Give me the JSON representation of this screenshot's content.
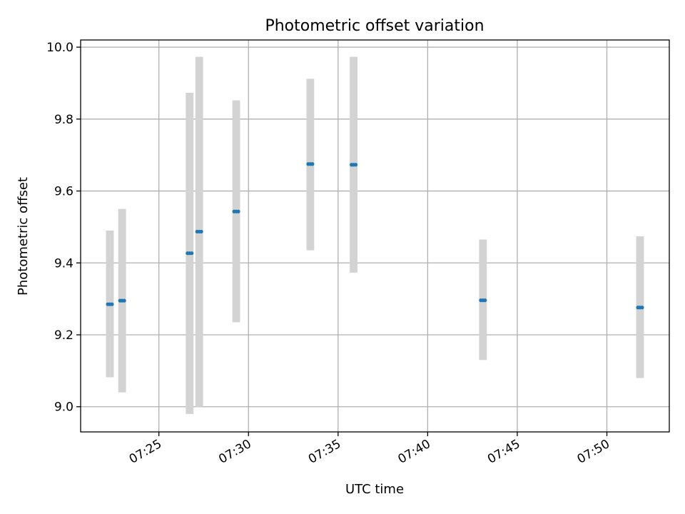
{
  "chart_data": {
    "type": "scatter",
    "title": "Photometric offset variation",
    "xlabel": "UTC time",
    "ylabel": "Photometric offset",
    "grid": true,
    "legend": "none",
    "xlim": [
      "07:20:38",
      "07:53:29"
    ],
    "ylim": [
      8.93,
      10.02
    ],
    "xticks": [
      "07:25",
      "07:30",
      "07:35",
      "07:40",
      "07:45",
      "07:50"
    ],
    "yticks": [
      "9.0",
      "9.2",
      "9.4",
      "9.6",
      "9.8",
      "10.0"
    ],
    "colors": {
      "point": "#1f77b4",
      "error_bar": "#d3d3d3",
      "grid": "#b0b0b0"
    },
    "series": [
      {
        "points": [
          {
            "time": "07:22:09",
            "y": 9.285,
            "y_low": 9.082,
            "y_high": 9.49
          },
          {
            "time": "07:22:16",
            "y": 9.285,
            "y_low": 9.082,
            "y_high": 9.49
          },
          {
            "time": "07:22:23",
            "y": 9.285,
            "y_low": 9.082,
            "y_high": 9.49
          },
          {
            "time": "07:22:50",
            "y": 9.295,
            "y_low": 9.04,
            "y_high": 9.55
          },
          {
            "time": "07:22:57",
            "y": 9.295,
            "y_low": 9.04,
            "y_high": 9.55
          },
          {
            "time": "07:23:04",
            "y": 9.295,
            "y_low": 9.04,
            "y_high": 9.55
          },
          {
            "time": "07:26:36",
            "y": 9.427,
            "y_low": 8.98,
            "y_high": 9.873
          },
          {
            "time": "07:26:43",
            "y": 9.427,
            "y_low": 8.98,
            "y_high": 9.873
          },
          {
            "time": "07:26:50",
            "y": 9.427,
            "y_low": 8.98,
            "y_high": 9.873
          },
          {
            "time": "07:27:08",
            "y": 9.487,
            "y_low": 9.0,
            "y_high": 9.973
          },
          {
            "time": "07:27:15",
            "y": 9.487,
            "y_low": 9.0,
            "y_high": 9.973
          },
          {
            "time": "07:27:22",
            "y": 9.487,
            "y_low": 9.0,
            "y_high": 9.973
          },
          {
            "time": "07:29:12",
            "y": 9.543,
            "y_low": 9.235,
            "y_high": 9.852
          },
          {
            "time": "07:29:19",
            "y": 9.543,
            "y_low": 9.235,
            "y_high": 9.852
          },
          {
            "time": "07:29:26",
            "y": 9.543,
            "y_low": 9.235,
            "y_high": 9.852
          },
          {
            "time": "07:33:20",
            "y": 9.675,
            "y_low": 9.435,
            "y_high": 9.912
          },
          {
            "time": "07:33:27",
            "y": 9.675,
            "y_low": 9.435,
            "y_high": 9.912
          },
          {
            "time": "07:33:34",
            "y": 9.675,
            "y_low": 9.435,
            "y_high": 9.912
          },
          {
            "time": "07:35:45",
            "y": 9.673,
            "y_low": 9.373,
            "y_high": 9.973
          },
          {
            "time": "07:35:52",
            "y": 9.673,
            "y_low": 9.373,
            "y_high": 9.973
          },
          {
            "time": "07:35:59",
            "y": 9.673,
            "y_low": 9.373,
            "y_high": 9.973
          },
          {
            "time": "07:42:58",
            "y": 9.296,
            "y_low": 9.13,
            "y_high": 9.465
          },
          {
            "time": "07:43:05",
            "y": 9.296,
            "y_low": 9.13,
            "y_high": 9.465
          },
          {
            "time": "07:43:12",
            "y": 9.296,
            "y_low": 9.13,
            "y_high": 9.465
          },
          {
            "time": "07:51:44",
            "y": 9.276,
            "y_low": 9.08,
            "y_high": 9.474
          },
          {
            "time": "07:51:51",
            "y": 9.276,
            "y_low": 9.08,
            "y_high": 9.474
          },
          {
            "time": "07:51:58",
            "y": 9.276,
            "y_low": 9.08,
            "y_high": 9.474
          }
        ]
      }
    ]
  }
}
